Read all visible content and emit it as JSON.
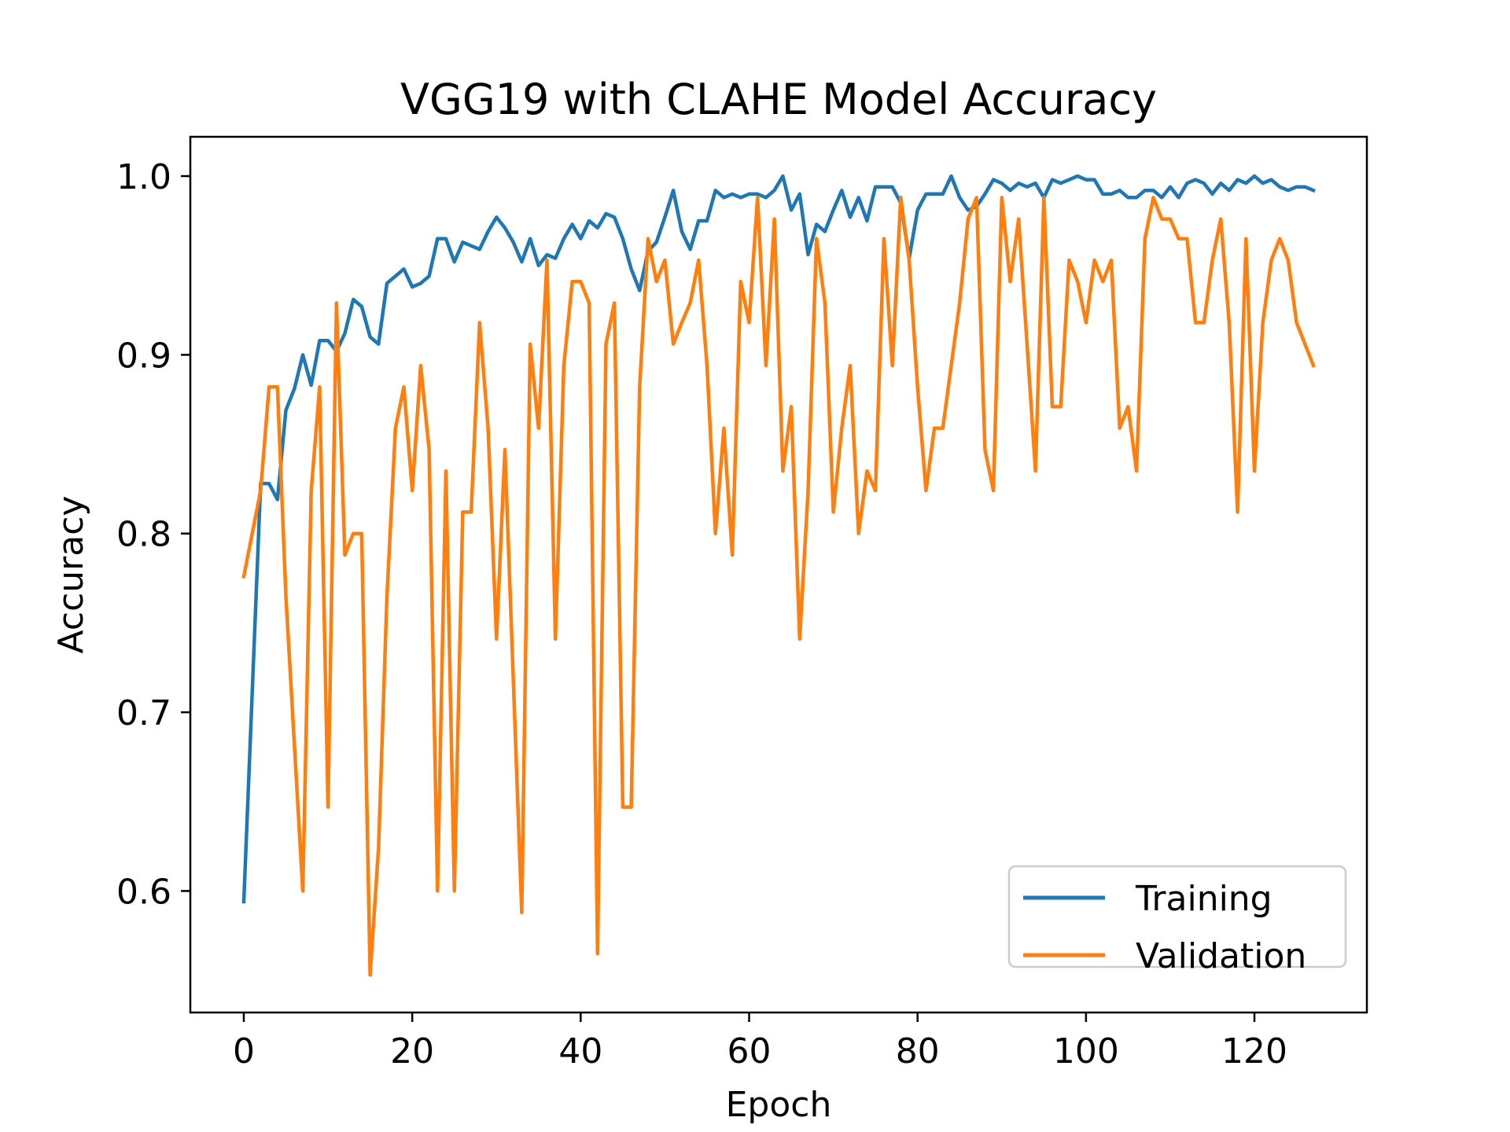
{
  "chart_data": {
    "type": "line",
    "title": "VGG19 with CLAHE Model Accuracy",
    "xlabel": "Epoch",
    "ylabel": "Accuracy",
    "xlim": [
      -6.35,
      133.35
    ],
    "ylim": [
      0.532,
      1.022
    ],
    "x_ticks": [
      0,
      20,
      40,
      60,
      80,
      100,
      120
    ],
    "y_ticks": [
      0.6,
      0.7,
      0.8,
      0.9,
      1.0
    ],
    "x_tick_labels": [
      "0",
      "20",
      "40",
      "60",
      "80",
      "100",
      "120"
    ],
    "y_tick_labels": [
      "0.6",
      "0.7",
      "0.8",
      "0.9",
      "1.0"
    ],
    "grid": false,
    "legend_position": "lower-right",
    "series": [
      {
        "name": "Training",
        "color": "#1f77b4",
        "y": [
          0.594,
          0.711,
          0.828,
          0.828,
          0.819,
          0.869,
          0.881,
          0.9,
          0.883,
          0.908,
          0.908,
          0.902,
          0.912,
          0.931,
          0.927,
          0.91,
          0.906,
          0.94,
          0.944,
          0.948,
          0.938,
          0.94,
          0.944,
          0.965,
          0.965,
          0.952,
          0.963,
          0.961,
          0.959,
          0.969,
          0.977,
          0.971,
          0.963,
          0.952,
          0.965,
          0.95,
          0.956,
          0.954,
          0.965,
          0.973,
          0.965,
          0.975,
          0.971,
          0.979,
          0.977,
          0.965,
          0.948,
          0.936,
          0.958,
          0.963,
          0.977,
          0.992,
          0.969,
          0.959,
          0.975,
          0.975,
          0.992,
          0.988,
          0.99,
          0.988,
          0.99,
          0.99,
          0.988,
          0.992,
          1.0,
          0.981,
          0.99,
          0.956,
          0.973,
          0.969,
          0.981,
          0.992,
          0.977,
          0.988,
          0.975,
          0.994,
          0.994,
          0.994,
          0.985,
          0.954,
          0.981,
          0.99,
          0.99,
          0.99,
          1.0,
          0.988,
          0.981,
          0.983,
          0.99,
          0.998,
          0.996,
          0.992,
          0.996,
          0.994,
          0.996,
          0.988,
          0.998,
          0.996,
          0.998,
          1.0,
          0.998,
          0.998,
          0.99,
          0.99,
          0.992,
          0.988,
          0.988,
          0.992,
          0.992,
          0.988,
          0.994,
          0.988,
          0.996,
          0.998,
          0.996,
          0.99,
          0.996,
          0.992,
          0.998,
          0.996,
          1.0,
          0.996,
          0.998,
          0.994,
          0.992,
          0.994,
          0.994,
          0.992
        ]
      },
      {
        "name": "Validation",
        "color": "#ff7f0e",
        "y": [
          0.776,
          0.8,
          0.824,
          0.882,
          0.882,
          0.765,
          0.682,
          0.6,
          0.824,
          0.882,
          0.647,
          0.929,
          0.788,
          0.8,
          0.8,
          0.553,
          0.624,
          0.765,
          0.859,
          0.882,
          0.824,
          0.894,
          0.847,
          0.6,
          0.835,
          0.6,
          0.812,
          0.812,
          0.918,
          0.859,
          0.741,
          0.847,
          0.718,
          0.588,
          0.906,
          0.859,
          0.953,
          0.741,
          0.894,
          0.941,
          0.941,
          0.929,
          0.565,
          0.906,
          0.929,
          0.647,
          0.647,
          0.882,
          0.965,
          0.941,
          0.953,
          0.906,
          0.918,
          0.929,
          0.953,
          0.894,
          0.8,
          0.859,
          0.788,
          0.941,
          0.918,
          0.988,
          0.894,
          0.976,
          0.835,
          0.871,
          0.741,
          0.824,
          0.965,
          0.929,
          0.812,
          0.859,
          0.894,
          0.8,
          0.835,
          0.824,
          0.965,
          0.894,
          0.988,
          0.953,
          0.882,
          0.824,
          0.859,
          0.859,
          0.894,
          0.929,
          0.976,
          0.988,
          0.847,
          0.824,
          0.988,
          0.941,
          0.976,
          0.906,
          0.835,
          0.988,
          0.871,
          0.871,
          0.953,
          0.941,
          0.918,
          0.953,
          0.941,
          0.953,
          0.859,
          0.871,
          0.835,
          0.965,
          0.988,
          0.976,
          0.976,
          0.965,
          0.965,
          0.918,
          0.918,
          0.953,
          0.976,
          0.918,
          0.812,
          0.965,
          0.835,
          0.918,
          0.953,
          0.965,
          0.953,
          0.918,
          0.906,
          0.894
        ]
      }
    ]
  }
}
